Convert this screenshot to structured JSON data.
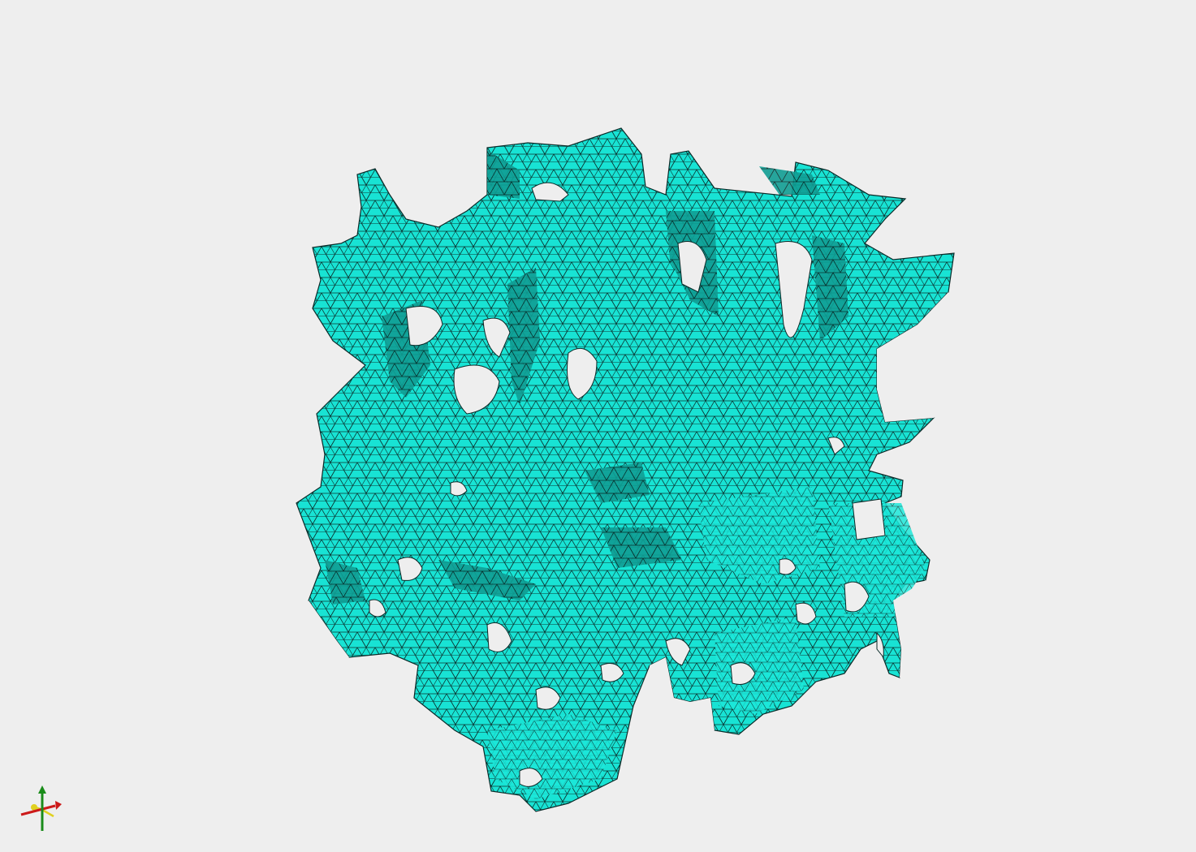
{
  "viewport": {
    "background": "#eeeeee"
  },
  "mesh": {
    "name": "porous-scaffold-mesh",
    "fill_color": "#19e6d6",
    "shade_color": "#0d8c82",
    "edge_color": "#0a2a28",
    "hole_color": "#eeeeee"
  },
  "axis_triad": {
    "x_color": "#cc1a1a",
    "y_color": "#1a8c1a",
    "z_color": "#e0d020",
    "icons": [
      "axis-x-arrow-icon",
      "axis-y-arrow-icon",
      "axis-z-arrow-icon"
    ]
  }
}
